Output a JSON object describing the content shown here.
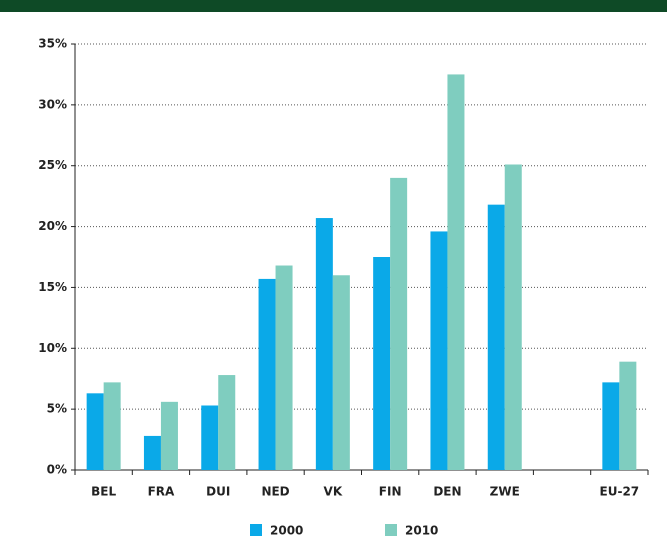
{
  "chart_data": {
    "type": "bar",
    "categories": [
      "BEL",
      "FRA",
      "DUI",
      "NED",
      "VK",
      "FIN",
      "DEN",
      "ZWE",
      null,
      "EU-27"
    ],
    "series": [
      {
        "name": "2000",
        "color": "#0aa9e8",
        "values": [
          6.3,
          2.8,
          5.3,
          15.7,
          20.7,
          17.5,
          19.6,
          21.8,
          null,
          7.2
        ]
      },
      {
        "name": "2010",
        "color": "#7fcdbf",
        "values": [
          7.2,
          5.6,
          7.8,
          16.8,
          16.0,
          24.0,
          32.5,
          25.1,
          null,
          8.9
        ]
      }
    ],
    "ylim": [
      0,
      35
    ],
    "yticks": [
      {
        "value": 0,
        "label": "0%"
      },
      {
        "value": 5,
        "label": "5%"
      },
      {
        "value": 10,
        "label": "10%"
      },
      {
        "value": 15,
        "label": "15%"
      },
      {
        "value": 20,
        "label": "20%"
      },
      {
        "value": 25,
        "label": "25%"
      },
      {
        "value": 30,
        "label": "30%"
      },
      {
        "value": 35,
        "label": "35%"
      }
    ],
    "grid": true
  }
}
